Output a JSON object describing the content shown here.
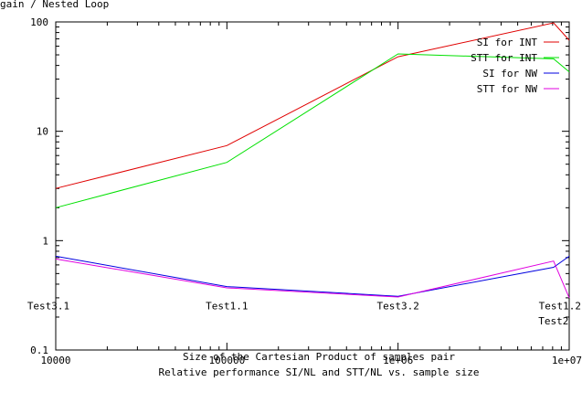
{
  "chart_data": {
    "type": "line",
    "title": "",
    "xlabel": "Size of the Cartesian Product of samples pair",
    "ylabel": "gain / Nested Loop",
    "caption": "Relative performance SI/NL and STT/NL vs. sample size",
    "x_scale": "log",
    "y_scale": "log",
    "xlim": [
      10000,
      10000000
    ],
    "ylim": [
      0.1,
      100
    ],
    "x_ticks": [
      {
        "value": 10000,
        "label": "10000"
      },
      {
        "value": 100000,
        "label": "100000"
      },
      {
        "value": 1000000,
        "label": "1e+06"
      },
      {
        "value": 10000000,
        "label": "1e+07"
      }
    ],
    "y_ticks": [
      {
        "value": 0.1,
        "label": "0.1"
      },
      {
        "value": 1,
        "label": "1"
      },
      {
        "value": 10,
        "label": "10"
      },
      {
        "value": 100,
        "label": "100"
      }
    ],
    "grid": false,
    "legend_position": "top-right",
    "series": [
      {
        "name": "SI for INT",
        "color": "#e00000",
        "points": [
          [
            10000,
            3.0
          ],
          [
            100000,
            7.4
          ],
          [
            1000000,
            48
          ],
          [
            8100000,
            98
          ],
          [
            10000000,
            68
          ]
        ]
      },
      {
        "name": "STT for INT",
        "color": "#00e000",
        "points": [
          [
            10000,
            2.0
          ],
          [
            100000,
            5.2
          ],
          [
            1000000,
            51
          ],
          [
            8100000,
            46
          ],
          [
            10000000,
            35
          ]
        ]
      },
      {
        "name": "SI for NW",
        "color": "#0000e0",
        "points": [
          [
            10000,
            0.72
          ],
          [
            100000,
            0.38
          ],
          [
            1000000,
            0.31
          ],
          [
            8100000,
            0.57
          ],
          [
            10000000,
            0.72
          ]
        ]
      },
      {
        "name": "STT for NW",
        "color": "#e000e0",
        "points": [
          [
            10000,
            0.68
          ],
          [
            100000,
            0.37
          ],
          [
            1000000,
            0.305
          ],
          [
            8100000,
            0.65
          ],
          [
            10000000,
            0.3
          ]
        ]
      }
    ],
    "annotations": [
      {
        "text": "Test3.1",
        "x": 10000,
        "y": 0.255
      },
      {
        "text": "Test1.1",
        "x": 100000,
        "y": 0.255
      },
      {
        "text": "Test3.2",
        "x": 1000000,
        "y": 0.255
      },
      {
        "text": "Test1.2",
        "x": 10000000,
        "y": 0.255
      },
      {
        "text": "Test2",
        "x": 8100000,
        "y": 0.185
      }
    ]
  }
}
